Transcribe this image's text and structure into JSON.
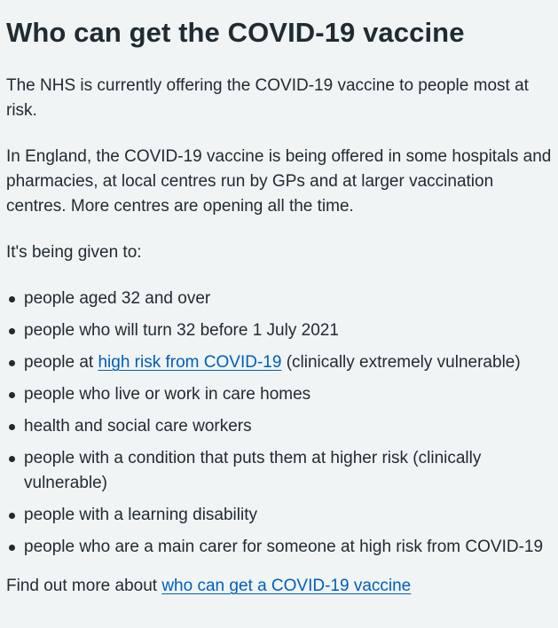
{
  "heading": "Who can get the COVID-19 vaccine",
  "intro": "The NHS is currently offering the COVID-19 vaccine to people most at risk.",
  "england": "In England, the COVID-19 vaccine is being offered in some hospitals and pharmacies, at local centres run by GPs and at larger vaccination centres. More centres are opening all the time.",
  "given_to": "It's being given to:",
  "list": {
    "item0": "people aged 32 and over",
    "item1": "people who will turn 32 before 1 July 2021",
    "item2_pre": "people at ",
    "item2_link": "high risk from COVID-19",
    "item2_post": " (clinically extremely vulnerable)",
    "item3": "people who live or work in care homes",
    "item4": "health and social care workers",
    "item5": "people with a condition that puts them at higher risk (clinically vulnerable)",
    "item6": "people with a learning disability",
    "item7": "people who are a main carer for someone at high risk from COVID-19"
  },
  "find_out": {
    "text": "Find out more about ",
    "link": "who can get a COVID-19 vaccine"
  },
  "colors": {
    "background": "#f0f4f5",
    "text": "#212b32",
    "link": "#005eb8"
  }
}
